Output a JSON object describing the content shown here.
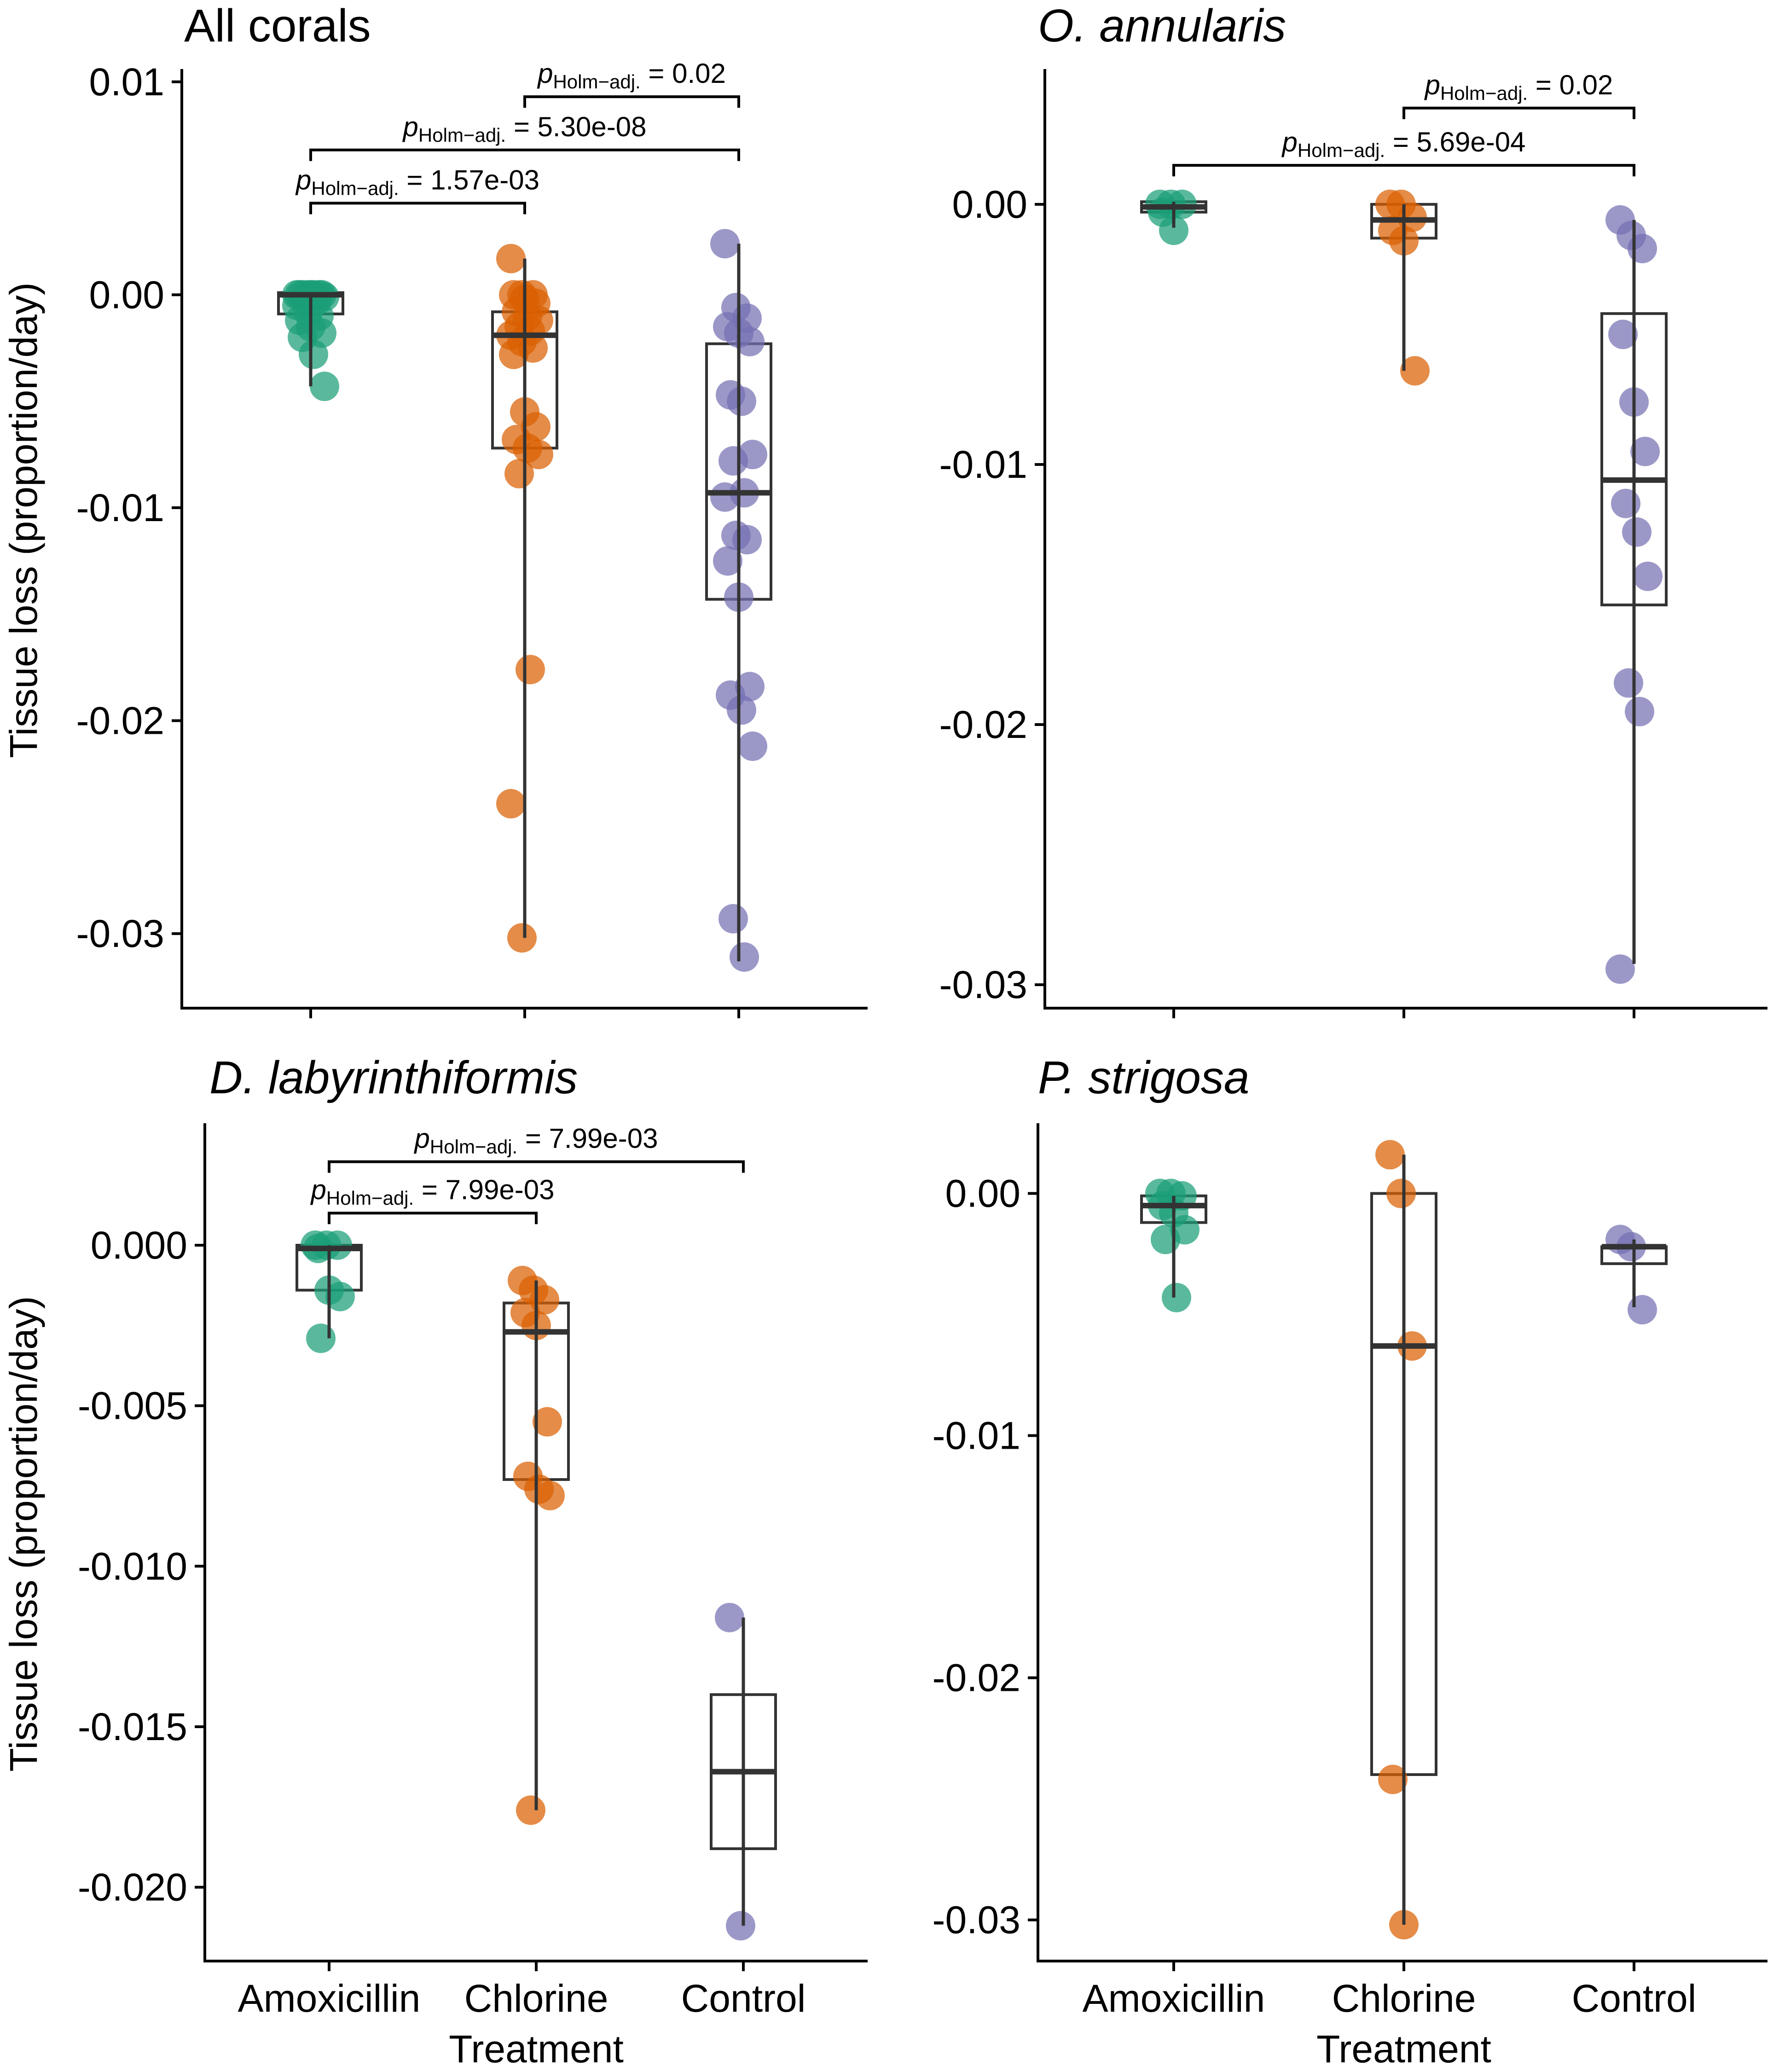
{
  "figure": {
    "ylabel": "Tissue loss (proportion/day)",
    "xlabel": "Treatment",
    "groups": [
      "Amoxicillin",
      "Chlorine",
      "Control"
    ],
    "colors": {
      "Amoxicillin": "#1b9e77",
      "Chlorine": "#d95f02",
      "Control": "#7570b3",
      "box": "#333333"
    }
  },
  "chart_data": [
    {
      "type": "box",
      "title": "All corals",
      "title_italic": false,
      "categories": [
        "Amoxicillin",
        "Chlorine",
        "Control"
      ],
      "ylim": [
        -0.0335,
        0.0106
      ],
      "yticks": [
        0.01,
        0.0,
        -0.01,
        -0.02,
        -0.03
      ],
      "ytick_labels": [
        "0.01",
        "0.00",
        "-0.01",
        "-0.02",
        "-0.03"
      ],
      "show_ylabel": true,
      "show_xaxis_labels": false,
      "boxes": [
        {
          "q1": -0.0009,
          "median": 0.0,
          "q3": 0.0001,
          "wlo": -0.0043,
          "whi": 0.0001
        },
        {
          "q1": -0.0072,
          "median": -0.0019,
          "q3": -0.0008,
          "wlo": -0.0302,
          "whi": 0.0017
        },
        {
          "q1": -0.0143,
          "median": -0.0093,
          "q3": -0.0023,
          "wlo": -0.0313,
          "whi": 0.0024
        }
      ],
      "points": [
        [
          0.0,
          0.0,
          0.0,
          0.0,
          0.0,
          0.0,
          0.0,
          0.0,
          -0.0001,
          -0.0002,
          -0.0003,
          -0.0005,
          -0.0008,
          -0.001,
          -0.0012,
          -0.0015,
          -0.0018,
          -0.002,
          -0.0028,
          -0.0043
        ],
        [
          0.0017,
          0.0,
          0.0,
          0.0,
          -0.0002,
          -0.0004,
          -0.0008,
          -0.001,
          -0.0012,
          -0.0015,
          -0.0017,
          -0.0019,
          -0.0022,
          -0.0025,
          -0.0028,
          -0.0055,
          -0.0062,
          -0.0068,
          -0.0072,
          -0.0075,
          -0.0084,
          -0.0176,
          -0.0239,
          -0.0302
        ],
        [
          0.0024,
          -0.0006,
          -0.0011,
          -0.0015,
          -0.0018,
          -0.0022,
          -0.0047,
          -0.005,
          -0.0075,
          -0.0078,
          -0.0093,
          -0.0095,
          -0.0113,
          -0.0115,
          -0.0125,
          -0.0142,
          -0.0184,
          -0.0188,
          -0.0195,
          -0.0212,
          -0.0293,
          -0.0311
        ]
      ],
      "brackets": [
        {
          "from": 1,
          "to": 2,
          "y": 0.0093,
          "label_pre": "p",
          "label_sub": "Holm−adj.",
          "label_post": " = 0.02"
        },
        {
          "from": 0,
          "to": 2,
          "y": 0.0068,
          "label_pre": "p",
          "label_sub": "Holm−adj.",
          "label_post": " = 5.30e-08"
        },
        {
          "from": 0,
          "to": 1,
          "y": 0.0043,
          "label_pre": "p",
          "label_sub": "Holm−adj.",
          "label_post": " = 1.57e-03"
        }
      ]
    },
    {
      "type": "box",
      "title": "O. annularis",
      "title_italic": true,
      "categories": [
        "Amoxicillin",
        "Chlorine",
        "Control"
      ],
      "ylim": [
        -0.0309,
        0.0052
      ],
      "yticks": [
        0.0,
        -0.01,
        -0.02,
        -0.03
      ],
      "ytick_labels": [
        "0.00",
        "-0.01",
        "-0.02",
        "-0.03"
      ],
      "show_ylabel": false,
      "show_xaxis_labels": false,
      "boxes": [
        {
          "q1": -0.0003,
          "median": -0.0001,
          "q3": 0.0001,
          "wlo": -0.0009,
          "whi": 0.0001
        },
        {
          "q1": -0.0013,
          "median": -0.0006,
          "q3": 0.0,
          "wlo": -0.0064,
          "whi": 0.0
        },
        {
          "q1": -0.0154,
          "median": -0.0106,
          "q3": -0.0042,
          "wlo": -0.0292,
          "whi": -0.0006
        }
      ],
      "points": [
        [
          0.0,
          0.0,
          0.0,
          -0.0003,
          -0.001
        ],
        [
          0.0,
          0.0,
          -0.0005,
          -0.001,
          -0.0014,
          -0.0064
        ],
        [
          -0.0006,
          -0.0012,
          -0.0017,
          -0.005,
          -0.0076,
          -0.0095,
          -0.0115,
          -0.0126,
          -0.0143,
          -0.0184,
          -0.0195,
          -0.0294
        ]
      ],
      "brackets": [
        {
          "from": 1,
          "to": 2,
          "y": 0.0037,
          "label_pre": "p",
          "label_sub": "Holm−adj.",
          "label_post": " = 0.02"
        },
        {
          "from": 0,
          "to": 2,
          "y": 0.0015,
          "label_pre": "p",
          "label_sub": "Holm−adj.",
          "label_post": " = 5.69e-04"
        }
      ]
    },
    {
      "type": "box",
      "title": "D. labyrinthiformis",
      "title_italic": true,
      "categories": [
        "Amoxicillin",
        "Chlorine",
        "Control"
      ],
      "ylim": [
        -0.0223,
        0.0038
      ],
      "yticks": [
        0.0,
        -0.005,
        -0.01,
        -0.015,
        -0.02
      ],
      "ytick_labels": [
        "0.000",
        "-0.005",
        "-0.010",
        "-0.015",
        "-0.020"
      ],
      "show_ylabel": true,
      "show_xaxis_labels": true,
      "boxes": [
        {
          "q1": -0.0014,
          "median": -0.0001,
          "q3": 0.0,
          "wlo": -0.0029,
          "whi": 0.0
        },
        {
          "q1": -0.0073,
          "median": -0.0027,
          "q3": -0.0018,
          "wlo": -0.0176,
          "whi": -0.0011
        },
        {
          "q1": -0.0188,
          "median": -0.0164,
          "q3": -0.014,
          "wlo": -0.0212,
          "whi": -0.0116
        }
      ],
      "points": [
        [
          0.0,
          0.0,
          0.0,
          -0.0001,
          -0.0014,
          -0.0016,
          -0.0029
        ],
        [
          -0.0011,
          -0.0014,
          -0.0017,
          -0.0021,
          -0.0025,
          -0.0055,
          -0.0072,
          -0.0076,
          -0.0078,
          -0.0176
        ],
        [
          -0.0116,
          -0.0212
        ]
      ],
      "brackets": [
        {
          "from": 0,
          "to": 2,
          "y": 0.0026,
          "label_pre": "p",
          "label_sub": "Holm−adj.",
          "label_post": " = 7.99e-03"
        },
        {
          "from": 0,
          "to": 1,
          "y": 0.001,
          "label_pre": "p",
          "label_sub": "Holm−adj.",
          "label_post": " = 7.99e-03"
        }
      ]
    },
    {
      "type": "box",
      "title": "P. strigosa",
      "title_italic": true,
      "categories": [
        "Amoxicillin",
        "Chlorine",
        "Control"
      ],
      "ylim": [
        -0.0317,
        0.0029
      ],
      "yticks": [
        0.0,
        -0.01,
        -0.02,
        -0.03
      ],
      "ytick_labels": [
        "0.00",
        "-0.01",
        "-0.02",
        "-0.03"
      ],
      "show_ylabel": false,
      "show_xaxis_labels": true,
      "boxes": [
        {
          "q1": -0.0012,
          "median": -0.0005,
          "q3": -0.0001,
          "wlo": -0.0043,
          "whi": -0.0001
        },
        {
          "q1": -0.024,
          "median": -0.0063,
          "q3": 0.0,
          "wlo": -0.0302,
          "whi": 0.0016
        },
        {
          "q1": -0.0029,
          "median": -0.0022,
          "q3": -0.0022,
          "wlo": -0.0047,
          "whi": -0.0019
        }
      ],
      "points": [
        [
          0.0,
          0.0,
          -0.0001,
          -0.0005,
          -0.0008,
          -0.0015,
          -0.0019,
          -0.0043
        ],
        [
          0.0016,
          0.0,
          -0.0063,
          -0.0242,
          -0.0302
        ],
        [
          -0.0019,
          -0.0022,
          -0.0048
        ]
      ],
      "brackets": []
    }
  ]
}
